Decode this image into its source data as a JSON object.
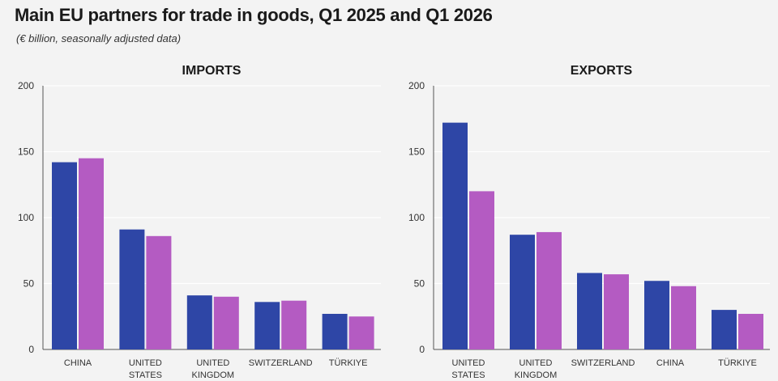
{
  "title": "Main EU partners for trade in goods, Q1 2025 and Q1 2026",
  "subtitle": "(€ billion, seasonally adjusted data)",
  "colors": {
    "q1_2025": "#2e46a6",
    "q1_2026": "#b45bc2",
    "axis": "#555555",
    "grid": "#ffffff"
  },
  "chart_data": [
    {
      "type": "bar",
      "title": "IMPORTS",
      "categories": [
        [
          "CHINA"
        ],
        [
          "UNITED",
          "STATES"
        ],
        [
          "UNITED",
          "KINGDOM"
        ],
        [
          "SWITZERLAND"
        ],
        [
          "TÜRKIYE"
        ]
      ],
      "series": [
        {
          "values": [
            142,
            91,
            41,
            36,
            27
          ]
        },
        {
          "values": [
            145,
            86,
            40,
            37,
            25
          ]
        }
      ],
      "ylim": [
        0,
        200
      ],
      "yticks": [
        0,
        50,
        100,
        150,
        200
      ],
      "grid": true
    },
    {
      "type": "bar",
      "title": "EXPORTS",
      "categories": [
        [
          "UNITED",
          "STATES"
        ],
        [
          "UNITED",
          "KINGDOM"
        ],
        [
          "SWITZERLAND"
        ],
        [
          "CHINA"
        ],
        [
          "TÜRKIYE"
        ]
      ],
      "series": [
        {
          "values": [
            172,
            87,
            58,
            52,
            30
          ]
        },
        {
          "values": [
            120,
            89,
            57,
            48,
            27
          ]
        }
      ],
      "ylim": [
        0,
        200
      ],
      "yticks": [
        0,
        50,
        100,
        150,
        200
      ],
      "grid": true
    }
  ]
}
